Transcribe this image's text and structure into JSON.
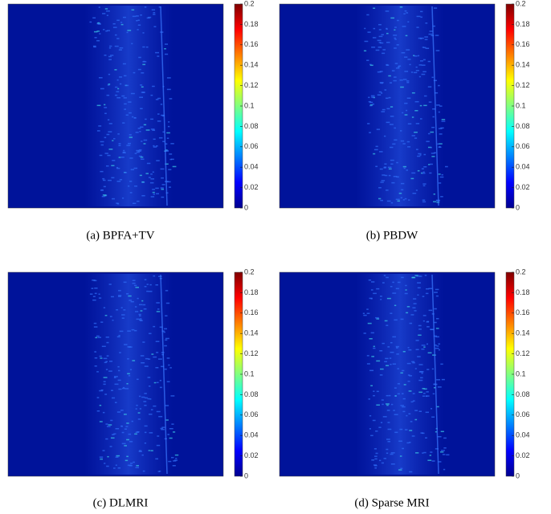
{
  "colorbar": {
    "lim": [
      0,
      0.2
    ],
    "ticks": [
      0,
      0.02,
      0.04,
      0.06,
      0.08,
      0.1,
      0.12,
      0.14,
      0.16,
      0.18,
      0.2
    ]
  },
  "panels": [
    {
      "caption": "(a) BPFA+TV"
    },
    {
      "caption": "(b) PBDW"
    },
    {
      "caption": "(c) DLMRI"
    },
    {
      "caption": "(d) Sparse MRI"
    }
  ]
}
